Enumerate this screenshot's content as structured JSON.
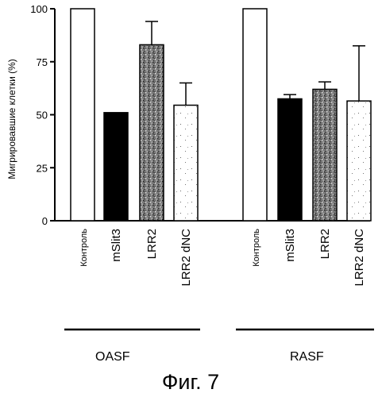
{
  "chart_data": {
    "type": "bar",
    "ylabel": "Мигрировавшие клетки (%)",
    "ylim": [
      0,
      100
    ],
    "yticks": [
      0,
      25,
      50,
      75,
      100
    ],
    "groups": [
      {
        "name": "OASF",
        "categories": [
          "Контроль",
          "mSlit3",
          "LRR2",
          "LRR2 dNC"
        ],
        "values": [
          100,
          51,
          83,
          54.5
        ],
        "errors": [
          0,
          0,
          11,
          10.5
        ]
      },
      {
        "name": "RASF",
        "categories": [
          "Контроль",
          "mSlit3",
          "LRR2",
          "LRR2 dNC"
        ],
        "values": [
          100,
          57.5,
          62,
          56.5
        ],
        "errors": [
          0,
          2,
          3.5,
          26
        ]
      }
    ],
    "bar_styles": [
      "white",
      "black",
      "stipple-dense",
      "stipple-sparse"
    ],
    "grid": false,
    "legend": "none"
  },
  "caption": "Фиг. 7"
}
